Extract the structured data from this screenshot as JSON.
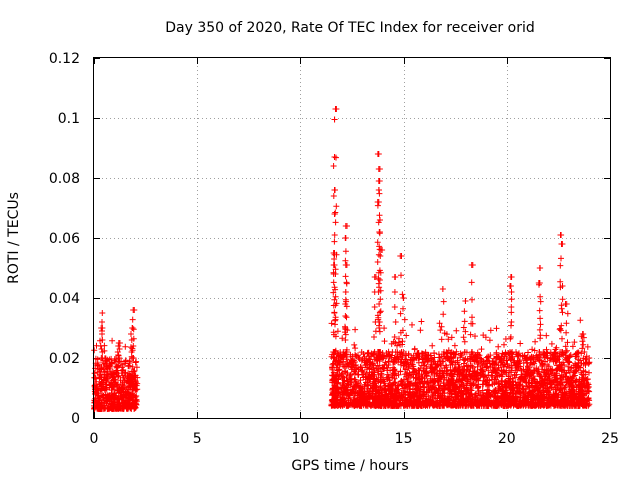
{
  "chart_data": {
    "type": "scatter",
    "title": "Day 350 of 2020, Rate Of TEC Index for receiver orid",
    "xlabel": "GPS time / hours",
    "ylabel": "ROTI / TECUs",
    "xlim": [
      0,
      25
    ],
    "ylim": [
      0,
      0.12
    ],
    "xticks": [
      0,
      5,
      10,
      15,
      20,
      25
    ],
    "xtick_labels": [
      "0",
      "5",
      "10",
      "15",
      "20",
      "25"
    ],
    "yticks": [
      0,
      0.02,
      0.04,
      0.06,
      0.08,
      0.1,
      0.12
    ],
    "ytick_labels": [
      "0",
      "0.02",
      "0.04",
      "0.06",
      "0.08",
      "0.1",
      "0.12"
    ],
    "grid": true,
    "marker": "+",
    "color": "#ff0000",
    "series": [
      {
        "name": "ROTI",
        "segments": [
          {
            "x_range": [
              0.0,
              2.1
            ],
            "baseline": [
              0.003,
              0.02
            ],
            "peaks": [
              [
                0.35,
                0.03
              ],
              [
                0.4,
                0.035
              ],
              [
                1.2,
                0.025
              ],
              [
                1.9,
                0.036
              ],
              [
                1.85,
                0.03
              ]
            ]
          },
          {
            "x_range": [
              11.5,
              24.0
            ],
            "baseline": [
              0.004,
              0.022
            ],
            "peaks": [
              [
                11.7,
                0.103
              ],
              [
                11.65,
                0.0995
              ],
              [
                11.65,
                0.087
              ],
              [
                11.65,
                0.076
              ],
              [
                11.65,
                0.068
              ],
              [
                11.65,
                0.055
              ],
              [
                11.65,
                0.051
              ],
              [
                11.7,
                0.048
              ],
              [
                12.2,
                0.064
              ],
              [
                12.2,
                0.06
              ],
              [
                12.2,
                0.051
              ],
              [
                12.2,
                0.042
              ],
              [
                13.8,
                0.088
              ],
              [
                13.8,
                0.083
              ],
              [
                13.8,
                0.079
              ],
              [
                13.8,
                0.076
              ],
              [
                13.8,
                0.072
              ],
              [
                13.85,
                0.066
              ],
              [
                13.85,
                0.062
              ],
              [
                13.9,
                0.056
              ],
              [
                13.6,
                0.047
              ],
              [
                14.9,
                0.054
              ],
              [
                14.6,
                0.047
              ],
              [
                15.0,
                0.04
              ],
              [
                16.9,
                0.043
              ],
              [
                18.3,
                0.051
              ],
              [
                18.0,
                0.039
              ],
              [
                20.2,
                0.047
              ],
              [
                20.2,
                0.044
              ],
              [
                21.6,
                0.05
              ],
              [
                21.6,
                0.045
              ],
              [
                22.6,
                0.061
              ],
              [
                22.65,
                0.058
              ],
              [
                22.7,
                0.044
              ],
              [
                22.9,
                0.038
              ],
              [
                23.7,
                0.028
              ]
            ]
          }
        ]
      }
    ]
  }
}
